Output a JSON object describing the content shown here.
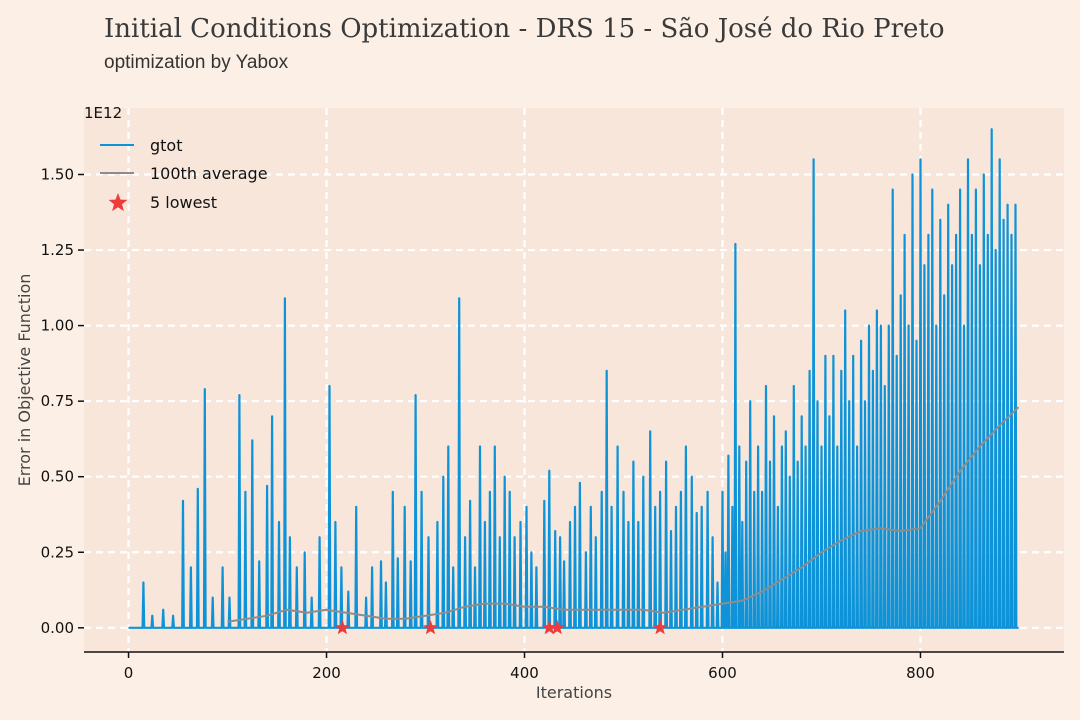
{
  "title": "Initial Conditions Optimization - DRS 15 - São José do Rio Preto",
  "subtitle": "optimization by Yabox",
  "colors": {
    "background": "#fcf0e6",
    "plot_area": "#f8e6da",
    "grid": "#ffffff",
    "gtot": "#0f93d8",
    "average": "#8c8c8c",
    "lowest": "#ee3b3b"
  },
  "chart_data": {
    "type": "line",
    "xlabel": "Iterations",
    "ylabel": "Error in Objective Function",
    "y_scale_label": "1E12",
    "xlim": [
      -45,
      945
    ],
    "ylim": [
      -0.08,
      1.72
    ],
    "x_ticks": [
      0,
      200,
      400,
      600,
      800
    ],
    "x_tick_labels": [
      "0",
      "200",
      "400",
      "600",
      "800"
    ],
    "y_ticks": [
      0,
      0.25,
      0.5,
      0.75,
      1.0,
      1.25,
      1.5
    ],
    "y_tick_labels": [
      "0.00",
      "0.25",
      "0.50",
      "0.75",
      "1.00",
      "1.25",
      "1.50"
    ],
    "grid": true,
    "legend_position": "top-left",
    "legend": [
      {
        "key": "gtot",
        "label": "gtot",
        "marker": "line"
      },
      {
        "key": "average",
        "label": "100th average",
        "marker": "line"
      },
      {
        "key": "lowest",
        "label": "5 lowest",
        "marker": "star"
      }
    ],
    "series": [
      {
        "name": "gtot",
        "style": "spikes",
        "x_range": [
          0,
          899
        ],
        "baseline": 0.0,
        "spikes": [
          [
            15,
            0.15
          ],
          [
            24,
            0.04
          ],
          [
            35,
            0.06
          ],
          [
            45,
            0.04
          ],
          [
            55,
            0.42
          ],
          [
            63,
            0.2
          ],
          [
            70,
            0.46
          ],
          [
            77,
            0.79
          ],
          [
            85,
            0.1
          ],
          [
            95,
            0.2
          ],
          [
            102,
            0.1
          ],
          [
            112,
            0.77
          ],
          [
            118,
            0.45
          ],
          [
            125,
            0.62
          ],
          [
            132,
            0.22
          ],
          [
            140,
            0.47
          ],
          [
            145,
            0.7
          ],
          [
            152,
            0.35
          ],
          [
            158,
            1.09
          ],
          [
            163,
            0.3
          ],
          [
            170,
            0.2
          ],
          [
            178,
            0.25
          ],
          [
            185,
            0.1
          ],
          [
            193,
            0.3
          ],
          [
            203,
            0.8
          ],
          [
            209,
            0.35
          ],
          [
            215,
            0.2
          ],
          [
            222,
            0.12
          ],
          [
            230,
            0.4
          ],
          [
            240,
            0.1
          ],
          [
            246,
            0.2
          ],
          [
            255,
            0.22
          ],
          [
            260,
            0.15
          ],
          [
            267,
            0.45
          ],
          [
            272,
            0.23
          ],
          [
            279,
            0.4
          ],
          [
            285,
            0.22
          ],
          [
            290,
            0.77
          ],
          [
            296,
            0.45
          ],
          [
            303,
            0.3
          ],
          [
            312,
            0.35
          ],
          [
            318,
            0.5
          ],
          [
            323,
            0.6
          ],
          [
            328,
            0.2
          ],
          [
            334,
            1.09
          ],
          [
            340,
            0.3
          ],
          [
            345,
            0.42
          ],
          [
            350,
            0.2
          ],
          [
            355,
            0.6
          ],
          [
            360,
            0.35
          ],
          [
            365,
            0.45
          ],
          [
            370,
            0.6
          ],
          [
            375,
            0.3
          ],
          [
            380,
            0.5
          ],
          [
            385,
            0.45
          ],
          [
            390,
            0.3
          ],
          [
            396,
            0.35
          ],
          [
            402,
            0.4
          ],
          [
            407,
            0.25
          ],
          [
            412,
            0.2
          ],
          [
            420,
            0.42
          ],
          [
            425,
            0.52
          ],
          [
            431,
            0.32
          ],
          [
            436,
            0.3
          ],
          [
            440,
            0.22
          ],
          [
            446,
            0.35
          ],
          [
            451,
            0.4
          ],
          [
            456,
            0.48
          ],
          [
            462,
            0.25
          ],
          [
            467,
            0.4
          ],
          [
            472,
            0.3
          ],
          [
            478,
            0.45
          ],
          [
            483,
            0.85
          ],
          [
            488,
            0.4
          ],
          [
            494,
            0.6
          ],
          [
            500,
            0.45
          ],
          [
            505,
            0.35
          ],
          [
            510,
            0.55
          ],
          [
            515,
            0.35
          ],
          [
            520,
            0.5
          ],
          [
            527,
            0.65
          ],
          [
            532,
            0.4
          ],
          [
            537,
            0.45
          ],
          [
            543,
            0.55
          ],
          [
            548,
            0.32
          ],
          [
            553,
            0.4
          ],
          [
            558,
            0.45
          ],
          [
            563,
            0.6
          ],
          [
            569,
            0.5
          ],
          [
            574,
            0.38
          ],
          [
            579,
            0.4
          ],
          [
            585,
            0.45
          ],
          [
            590,
            0.3
          ],
          [
            595,
            0.15
          ],
          [
            600,
            0.45
          ],
          [
            603,
            0.25
          ],
          [
            606,
            0.57
          ],
          [
            610,
            0.4
          ],
          [
            613,
            1.27
          ],
          [
            617,
            0.6
          ],
          [
            620,
            0.35
          ],
          [
            624,
            0.55
          ],
          [
            628,
            0.75
          ],
          [
            632,
            0.45
          ],
          [
            636,
            0.6
          ],
          [
            640,
            0.45
          ],
          [
            644,
            0.8
          ],
          [
            648,
            0.55
          ],
          [
            652,
            0.7
          ],
          [
            656,
            0.4
          ],
          [
            660,
            0.6
          ],
          [
            664,
            0.65
          ],
          [
            668,
            0.5
          ],
          [
            672,
            0.8
          ],
          [
            676,
            0.55
          ],
          [
            680,
            0.7
          ],
          [
            684,
            0.6
          ],
          [
            688,
            0.85
          ],
          [
            692,
            1.55
          ],
          [
            696,
            0.75
          ],
          [
            700,
            0.6
          ],
          [
            704,
            0.9
          ],
          [
            708,
            0.7
          ],
          [
            712,
            0.9
          ],
          [
            716,
            0.6
          ],
          [
            720,
            0.85
          ],
          [
            724,
            1.05
          ],
          [
            728,
            0.75
          ],
          [
            732,
            0.9
          ],
          [
            736,
            0.6
          ],
          [
            740,
            0.95
          ],
          [
            744,
            0.75
          ],
          [
            748,
            1.0
          ],
          [
            752,
            0.85
          ],
          [
            756,
            1.05
          ],
          [
            760,
            1.0
          ],
          [
            764,
            0.8
          ],
          [
            768,
            1.0
          ],
          [
            772,
            1.45
          ],
          [
            776,
            0.9
          ],
          [
            780,
            1.1
          ],
          [
            784,
            1.3
          ],
          [
            788,
            1.0
          ],
          [
            792,
            1.5
          ],
          [
            796,
            0.95
          ],
          [
            800,
            1.55
          ],
          [
            804,
            1.2
          ],
          [
            808,
            1.3
          ],
          [
            812,
            1.45
          ],
          [
            816,
            1.0
          ],
          [
            820,
            1.35
          ],
          [
            824,
            1.1
          ],
          [
            828,
            1.4
          ],
          [
            832,
            1.2
          ],
          [
            836,
            1.3
          ],
          [
            840,
            1.45
          ],
          [
            844,
            1.0
          ],
          [
            848,
            1.55
          ],
          [
            852,
            1.3
          ],
          [
            856,
            1.45
          ],
          [
            860,
            1.2
          ],
          [
            864,
            1.5
          ],
          [
            868,
            1.3
          ],
          [
            872,
            1.65
          ],
          [
            876,
            1.25
          ],
          [
            880,
            1.55
          ],
          [
            884,
            1.35
          ],
          [
            888,
            1.4
          ],
          [
            892,
            1.3
          ],
          [
            896,
            1.4
          ]
        ]
      },
      {
        "name": "100th average",
        "x": [
          100,
          120,
          140,
          160,
          180,
          200,
          220,
          240,
          260,
          280,
          300,
          320,
          340,
          360,
          380,
          400,
          420,
          440,
          460,
          480,
          500,
          520,
          540,
          560,
          580,
          600,
          620,
          640,
          660,
          680,
          700,
          720,
          740,
          760,
          780,
          800,
          820,
          840,
          860,
          880,
          899
        ],
        "values": [
          0.02,
          0.03,
          0.04,
          0.06,
          0.05,
          0.06,
          0.05,
          0.04,
          0.03,
          0.03,
          0.04,
          0.05,
          0.07,
          0.08,
          0.08,
          0.07,
          0.07,
          0.06,
          0.06,
          0.06,
          0.06,
          0.06,
          0.05,
          0.06,
          0.07,
          0.08,
          0.09,
          0.12,
          0.16,
          0.2,
          0.25,
          0.29,
          0.32,
          0.33,
          0.32,
          0.33,
          0.42,
          0.52,
          0.6,
          0.67,
          0.73
        ]
      },
      {
        "name": "5 lowest",
        "x": [
          216,
          305,
          425,
          433,
          537
        ],
        "values": [
          0.0,
          0.0,
          0.0,
          0.0,
          0.0
        ]
      }
    ]
  }
}
